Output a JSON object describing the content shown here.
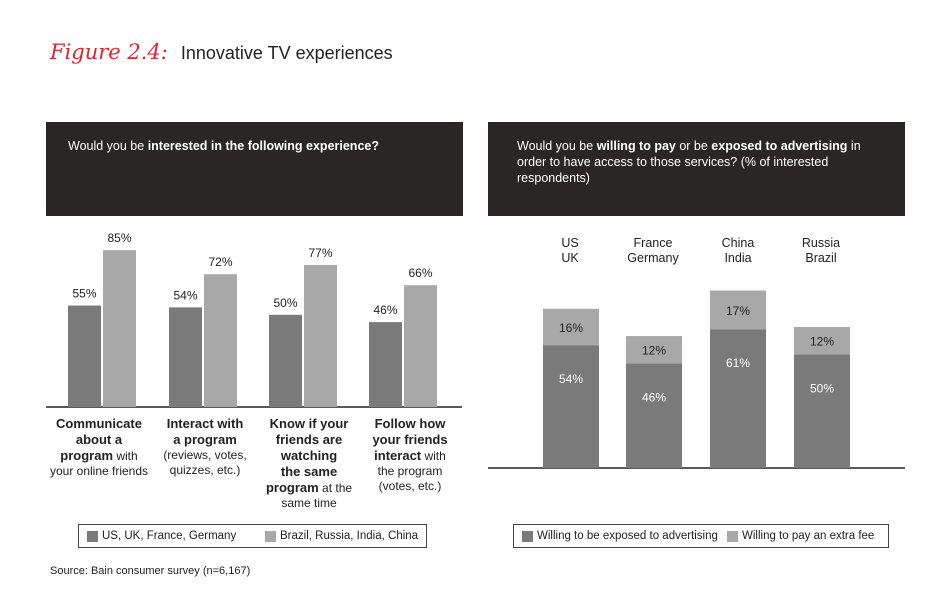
{
  "figure": {
    "number": "Figure 2.4:",
    "title": "Innovative TV experiences"
  },
  "left_panel": {
    "question_pre": "Would you be ",
    "question_bold": "interested in the following experience?",
    "categories": [
      {
        "l1": "Communicate",
        "l2": "about a",
        "l3": "program",
        "l3b": " with",
        "l4": "your online friends"
      },
      {
        "l1": "Interact with",
        "l2": "a program",
        "l3": "(reviews, votes,",
        "l4": "quizzes, etc.)"
      },
      {
        "l1": "Know if your",
        "l2": "friends are",
        "l3": "watching",
        "l4": "the same",
        "l5": "program",
        "l5b": " at the",
        "l6": "same time"
      },
      {
        "l1": "Follow how",
        "l2": "your friends",
        "l3": "interact",
        "l3b": " with",
        "l4": "the program",
        "l5": "(votes, etc.)"
      }
    ],
    "legend": [
      "US, UK, France, Germany",
      "Brazil, Russia, India, China"
    ]
  },
  "right_panel": {
    "question_pre": "Would you be ",
    "question_bold1": "willing to pay",
    "question_mid": " or be ",
    "question_bold2": "exposed to advertising",
    "question_post": " in order to have access to those services? (% of interested respondents)",
    "legend": [
      "Willing to be exposed to advertising",
      "Willing to pay an extra fee"
    ]
  },
  "source": "Source: Bain consumer survey (n=6,167)",
  "colors": {
    "dark_bar": "#7a7a7a",
    "light_bar": "#a8a8a8",
    "header_bg": "#2a2626",
    "accent": "#e0242b"
  },
  "chart_data": [
    {
      "type": "bar",
      "categories": [
        "Communicate about a program with your online friends",
        "Interact with a program (reviews, votes, quizzes, etc.)",
        "Know if your friends are watching the same program at the same time",
        "Follow how your friends interact with the program (votes, etc.)"
      ],
      "series": [
        {
          "name": "US, UK, France, Germany",
          "values": [
            55,
            54,
            50,
            46
          ],
          "labels": [
            "55%",
            "54%",
            "50%",
            "46%"
          ]
        },
        {
          "name": "Brazil, Russia, India, China",
          "values": [
            85,
            72,
            77,
            66
          ],
          "labels": [
            "85%",
            "72%",
            "77%",
            "66%"
          ]
        }
      ],
      "title": "Would you be interested in the following experience?",
      "ylim": [
        0,
        100
      ]
    },
    {
      "type": "bar",
      "stacked": true,
      "categories": [
        "US UK",
        "France Germany",
        "China India",
        "Russia Brazil"
      ],
      "series": [
        {
          "name": "Willing to be exposed to advertising",
          "values": [
            54,
            46,
            61,
            50
          ],
          "labels": [
            "54%",
            "46%",
            "61%",
            "50%"
          ]
        },
        {
          "name": "Willing to pay an extra fee",
          "values": [
            16,
            12,
            17,
            12
          ],
          "labels": [
            "16%",
            "12%",
            "17%",
            "12%"
          ]
        }
      ],
      "title": "Would you be willing to pay or be exposed to advertising in order to have access to those services? (% of interested respondents)",
      "ylim": [
        0,
        100
      ]
    }
  ],
  "right_categories": [
    {
      "l1": "US",
      "l2": "UK"
    },
    {
      "l1": "France",
      "l2": "Germany"
    },
    {
      "l1": "China",
      "l2": "India"
    },
    {
      "l1": "Russia",
      "l2": "Brazil"
    }
  ]
}
